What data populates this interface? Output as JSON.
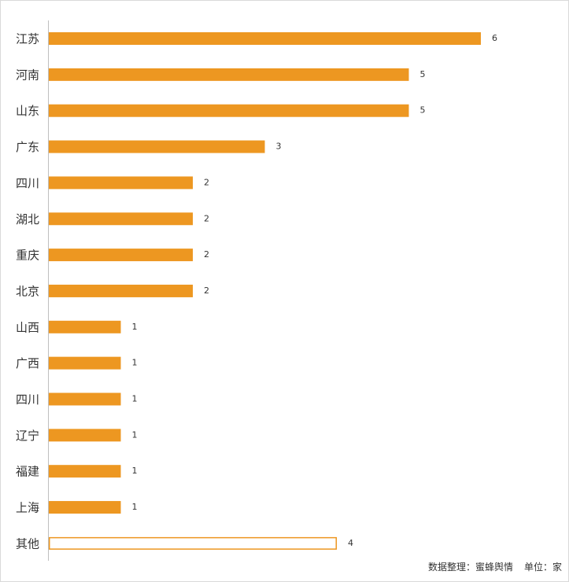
{
  "chart_data": {
    "type": "bar",
    "orientation": "horizontal",
    "categories": [
      "江苏",
      "河南",
      "山东",
      "广东",
      "四川",
      "湖北",
      "重庆",
      "北京",
      "山西",
      "广西",
      "四川",
      "辽宁",
      "福建",
      "上海",
      "其他"
    ],
    "values": [
      6,
      5,
      5,
      3,
      2,
      2,
      2,
      2,
      1,
      1,
      1,
      1,
      1,
      1,
      4
    ],
    "title": "",
    "xlabel": "",
    "ylabel": "",
    "xlim": [
      0,
      6
    ],
    "grid": false,
    "data_labels": true,
    "bar_color": "#ED9721",
    "other_bar_style": "outline"
  },
  "footer": {
    "source": "数据整理：蜜蜂舆情",
    "unit": "单位：家"
  }
}
